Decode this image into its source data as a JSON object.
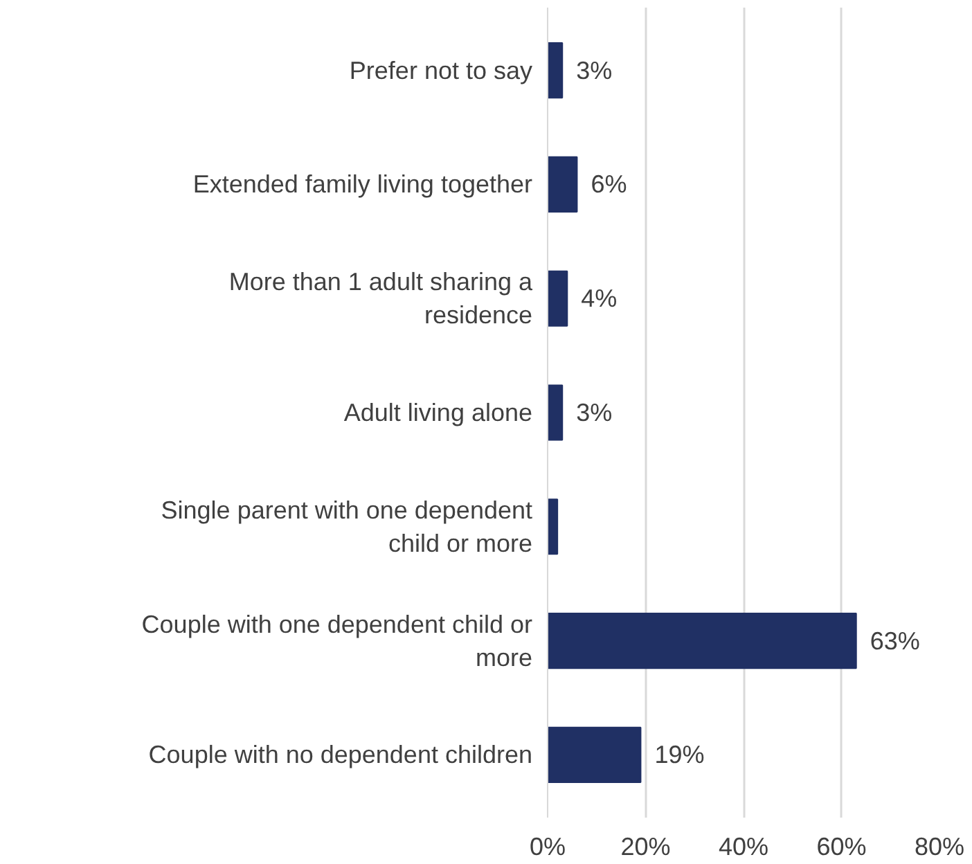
{
  "chart_data": {
    "type": "bar",
    "orientation": "horizontal",
    "categories": [
      "Prefer not to say",
      "Extended family living together",
      "More than 1 adult sharing a residence",
      "Adult living alone",
      "Single parent with one dependent child or more",
      "Couple with one dependent child or more",
      "Couple with no dependent children"
    ],
    "values": [
      3,
      6,
      4,
      3,
      2,
      63,
      19
    ],
    "value_labels": [
      "3%",
      "6%",
      "4%",
      "3%",
      null,
      "63%",
      "19%"
    ],
    "color": "#203064",
    "xlim": [
      0,
      80
    ],
    "xticks": [
      {
        "value": 0,
        "label": "0%"
      },
      {
        "value": 20,
        "label": "20%"
      },
      {
        "value": 40,
        "label": "40%"
      },
      {
        "value": 60,
        "label": "60%"
      },
      {
        "value": 80,
        "label": "80%"
      }
    ],
    "grid": "x"
  }
}
